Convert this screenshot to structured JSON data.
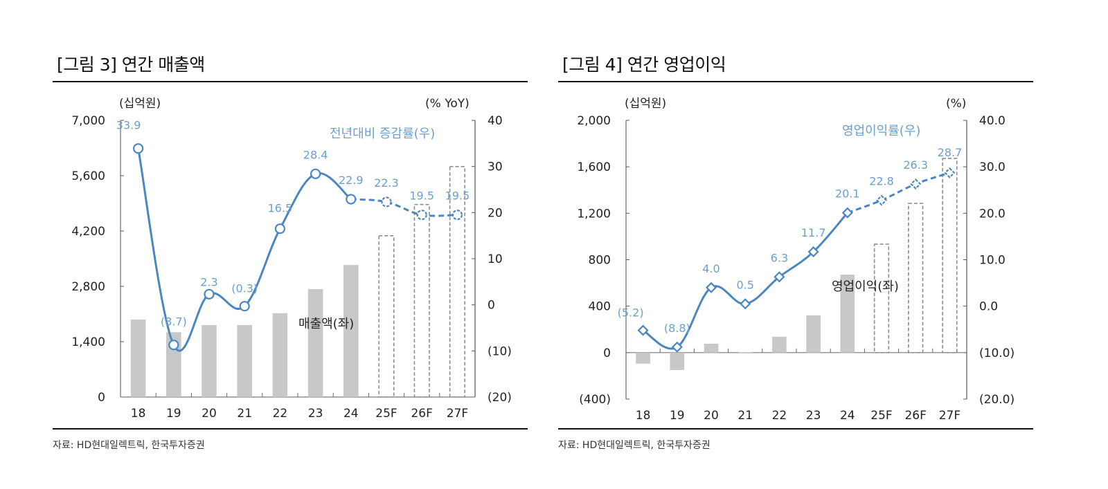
{
  "figures": [
    {
      "title": "[그림 3] 연간 매출액",
      "source": "자료: HD현대일렉트릭, 한국투자증권"
    },
    {
      "title": "[그림 4] 연간 영업이익",
      "source": "자료: HD현대일렉트릭, 한국투자증권"
    }
  ],
  "chart_data": [
    {
      "type": "bar+line",
      "title": "[그림 3] 연간 매출액",
      "categories": [
        "18",
        "19",
        "20",
        "21",
        "22",
        "23",
        "24",
        "25F",
        "26F",
        "27F"
      ],
      "forecast_from_index": 7,
      "left_axis": {
        "unit_label": "(십억원)",
        "range": [
          0,
          7000
        ],
        "ticks": [
          0,
          1400,
          2800,
          4200,
          5600,
          7000
        ],
        "tick_labels": [
          "0",
          "1,400",
          "2,800",
          "4,200",
          "5,600",
          "7,000"
        ]
      },
      "right_axis": {
        "unit_label": "(% YoY)",
        "range": [
          -20,
          40
        ],
        "ticks": [
          -20,
          -10,
          0,
          10,
          20,
          30,
          40
        ],
        "tick_labels": [
          "(20)",
          "(10)",
          "0",
          "10",
          "20",
          "30",
          "40"
        ]
      },
      "series": [
        {
          "name": "매출액(좌)",
          "kind": "bar",
          "axis": "left",
          "values": [
            1960,
            1640,
            1820,
            1820,
            2120,
            2730,
            3340,
            4080,
            4870,
            5830
          ]
        },
        {
          "name": "전년대비 증감률(우)",
          "kind": "line",
          "axis": "right",
          "marker": "circle",
          "values": [
            33.9,
            -8.7,
            2.3,
            -0.3,
            16.5,
            28.4,
            22.9,
            22.3,
            19.5,
            19.5
          ],
          "labels": [
            "33.9",
            "(8.7)",
            "2.3",
            "(0.3)",
            "16.5",
            "28.4",
            "22.9",
            "22.3",
            "19.5",
            "19.5"
          ]
        }
      ],
      "colors": {
        "bar": "#c8c8c8",
        "forecast_bar_outline": "#8c8c8c",
        "line": "#4a86c0",
        "label": "#6a9fd0"
      }
    },
    {
      "type": "bar+line",
      "title": "[그림 4] 연간 영업이익",
      "categories": [
        "18",
        "19",
        "20",
        "21",
        "22",
        "23",
        "24",
        "25F",
        "26F",
        "27F"
      ],
      "forecast_from_index": 7,
      "left_axis": {
        "unit_label": "(십억원)",
        "range": [
          -400,
          2000
        ],
        "ticks": [
          -400,
          0,
          400,
          800,
          1200,
          1600,
          2000
        ],
        "tick_labels": [
          "(400)",
          "0",
          "400",
          "800",
          "1,200",
          "1,600",
          "2,000"
        ]
      },
      "right_axis": {
        "unit_label": "(%)",
        "range": [
          -20,
          40
        ],
        "ticks": [
          -20,
          -10,
          0,
          10,
          20,
          30,
          40
        ],
        "tick_labels": [
          "(20.0)",
          "(10.0)",
          "0.0",
          "10.0",
          "20.0",
          "30.0",
          "40.0"
        ]
      },
      "series": [
        {
          "name": "영업이익(좌)",
          "kind": "bar",
          "axis": "left",
          "values": [
            -95,
            -150,
            77,
            5,
            137,
            321,
            672,
            934,
            1285,
            1672
          ]
        },
        {
          "name": "영업이익률(우)",
          "kind": "line",
          "axis": "right",
          "marker": "diamond",
          "values": [
            -5.2,
            -8.8,
            4.0,
            0.5,
            6.3,
            11.7,
            20.1,
            22.8,
            26.3,
            28.7
          ],
          "labels": [
            "(5.2)",
            "(8.8)",
            "4.0",
            "0.5",
            "6.3",
            "11.7",
            "20.1",
            "22.8",
            "26.3",
            "28.7"
          ]
        }
      ],
      "colors": {
        "bar": "#c8c8c8",
        "forecast_bar_outline": "#8c8c8c",
        "line": "#4a86c0",
        "label": "#6a9fd0"
      }
    }
  ]
}
